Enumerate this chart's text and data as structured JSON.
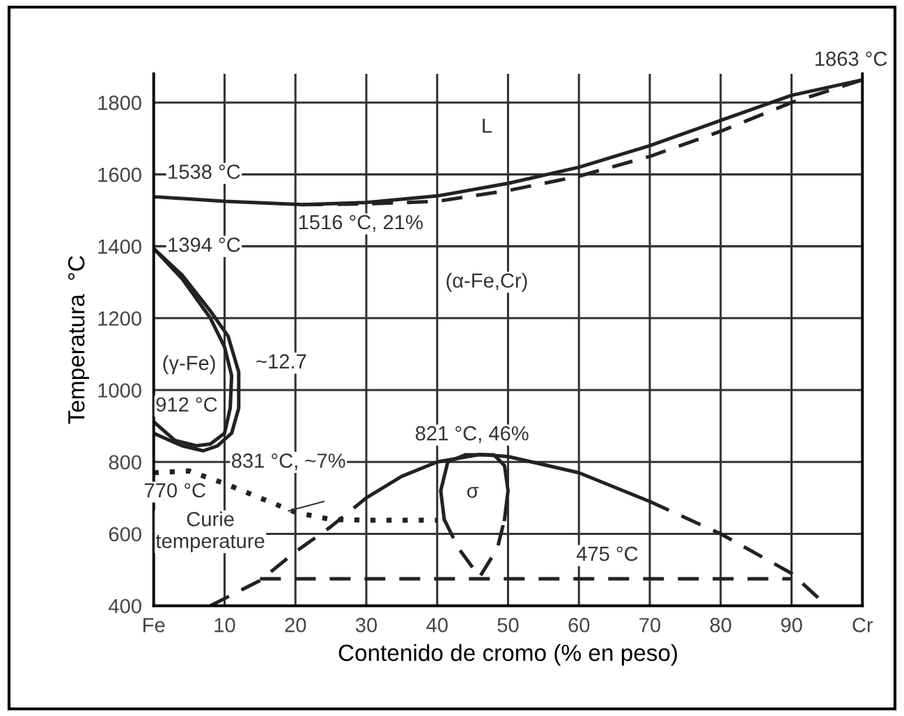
{
  "chart_data": {
    "type": "line",
    "xlabel": "Contenido de cromo (% en peso)",
    "ylabel": "Temperatura  °C",
    "xlim": [
      0,
      100
    ],
    "ylim": [
      400,
      1880
    ],
    "xticks": [
      {
        "value": 0,
        "label": "Fe"
      },
      10,
      20,
      30,
      40,
      50,
      60,
      70,
      80,
      90,
      {
        "value": 100,
        "label": "Cr"
      }
    ],
    "yticks": [
      400,
      600,
      800,
      1000,
      1200,
      1400,
      1600,
      1800
    ],
    "grid": true,
    "marker": "none",
    "series": [
      {
        "color": "#222222",
        "line_style": "solid",
        "x": [
          0,
          10,
          21,
          30,
          40,
          50,
          60,
          70,
          80,
          90,
          100
        ],
        "values": [
          1538,
          1525,
          1516,
          1522,
          1540,
          1575,
          1620,
          1680,
          1750,
          1820,
          1863
        ]
      },
      {
        "color": "#222222",
        "line_style": "dashed",
        "x": [
          21,
          30,
          40,
          50,
          60,
          70,
          80,
          90,
          100
        ],
        "values": [
          1516,
          1518,
          1525,
          1555,
          1595,
          1650,
          1720,
          1800,
          1863
        ]
      },
      {
        "color": "#222222",
        "line_style": "solid",
        "x": [
          0,
          4,
          8,
          10.5,
          12,
          12,
          11,
          9,
          7,
          4,
          0
        ],
        "values": [
          1394,
          1320,
          1220,
          1150,
          1050,
          950,
          880,
          845,
          831,
          845,
          880
        ]
      },
      {
        "color": "#222222",
        "line_style": "solid",
        "x": [
          0,
          4,
          8,
          10,
          11,
          10.8,
          10,
          8,
          6,
          3,
          0
        ],
        "values": [
          1394,
          1310,
          1200,
          1120,
          1040,
          950,
          880,
          850,
          845,
          860,
          912
        ]
      },
      {
        "color": "#222222",
        "line_style": "dotted",
        "x": [
          0,
          5,
          10,
          15,
          20,
          25,
          30,
          40
        ],
        "values": [
          770,
          775,
          740,
          700,
          660,
          640,
          638,
          638
        ]
      },
      {
        "color": "#222222",
        "line_style": "dashed",
        "x": [
          8,
          15,
          20,
          25,
          30
        ],
        "values": [
          400,
          470,
          550,
          620,
          700
        ]
      },
      {
        "color": "#222222",
        "line_style": "solid",
        "x": [
          30,
          35,
          40,
          46,
          50,
          60,
          70
        ],
        "values": [
          700,
          760,
          800,
          821,
          815,
          770,
          690
        ]
      },
      {
        "color": "#222222",
        "line_style": "dashed",
        "x": [
          70,
          80,
          90,
          95
        ],
        "values": [
          690,
          600,
          490,
          400
        ]
      },
      {
        "color": "#222222",
        "line_style": "solid",
        "x": [
          41,
          40.5,
          41.5,
          44,
          48,
          49.5,
          50,
          49.5
        ],
        "values": [
          640,
          720,
          800,
          820,
          820,
          790,
          720,
          640
        ]
      },
      {
        "color": "#222222",
        "line_style": "dashed",
        "x": [
          41,
          43,
          46,
          48.5,
          49.5
        ],
        "values": [
          640,
          560,
          480,
          560,
          640
        ]
      },
      {
        "color": "#222222",
        "line_style": "dashed",
        "x": [
          15,
          90
        ],
        "values": [
          475,
          475
        ]
      }
    ],
    "annotations": [
      {
        "text": "1538 °C",
        "x": 0,
        "y": 1538
      },
      {
        "text": "1516 °C, 21%",
        "x": 21,
        "y": 1516
      },
      {
        "text": "1394 °C",
        "x": 0,
        "y": 1394
      },
      "(γ-Fe)",
      "~12.7",
      {
        "text": "912 °C",
        "x": 0,
        "y": 912
      },
      {
        "text": "831 °C, ~7%",
        "x": 7,
        "y": 831
      },
      {
        "text": "770 °C",
        "x": 0,
        "y": 770
      },
      "Curie\ntemperature",
      {
        "text": "821 °C, 46%",
        "x": 46,
        "y": 821
      },
      "σ",
      {
        "text": "475 °C",
        "x": 64,
        "y": 475
      },
      "L",
      "(α-Fe,Cr)",
      {
        "text": "1863 °C",
        "x": 100,
        "y": 1863
      }
    ]
  }
}
